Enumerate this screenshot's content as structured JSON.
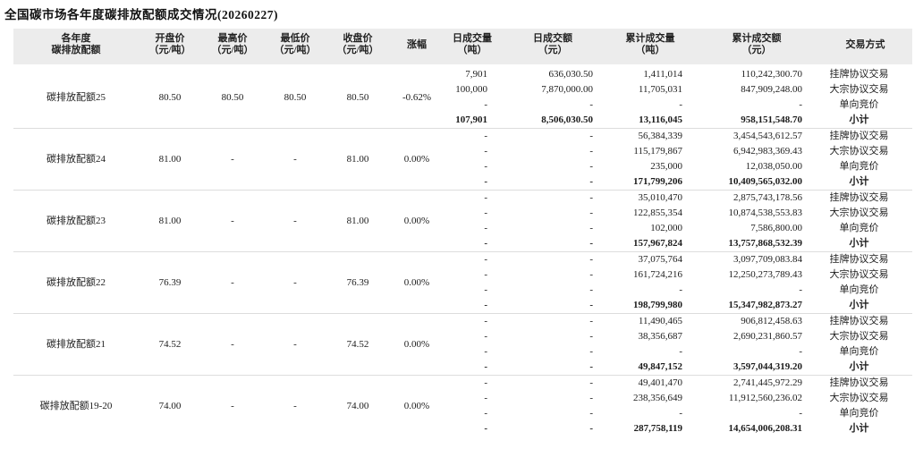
{
  "title": "全国碳市场各年度碳排放配额成交情况(20260227)",
  "table": {
    "subtotal_label": "小计",
    "headers": [
      [
        "各年度",
        "碳排放配额"
      ],
      [
        "开盘价",
        "（元/吨）"
      ],
      [
        "最高价",
        "（元/吨）"
      ],
      [
        "最低价",
        "（元/吨）"
      ],
      [
        "收盘价",
        "（元/吨）"
      ],
      [
        "涨幅",
        ""
      ],
      [
        "日成交量",
        "（吨）"
      ],
      [
        "日成交额",
        "（元）"
      ],
      [
        "累计成交量",
        "（吨）"
      ],
      [
        "累计成交额",
        "（元）"
      ],
      [
        "交易方式",
        ""
      ]
    ],
    "sections": [
      {
        "name": "碳排放配额25",
        "open": "80.50",
        "high": "80.50",
        "low": "80.50",
        "close": "80.50",
        "change": "-0.62%",
        "rows": [
          {
            "day_volume": "7,901",
            "day_amount": "636,030.50",
            "cum_volume": "1,411,014",
            "cum_amount": "110,242,300.70",
            "method": "挂牌协议交易"
          },
          {
            "day_volume": "100,000",
            "day_amount": "7,870,000.00",
            "cum_volume": "11,705,031",
            "cum_amount": "847,909,248.00",
            "method": "大宗协议交易"
          },
          {
            "day_volume": "-",
            "day_amount": "-",
            "cum_volume": "-",
            "cum_amount": "-",
            "method": "单向竞价"
          },
          {
            "day_volume": "107,901",
            "day_amount": "8,506,030.50",
            "cum_volume": "13,116,045",
            "cum_amount": "958,151,548.70",
            "method": "小计"
          }
        ]
      },
      {
        "name": "碳排放配额24",
        "open": "81.00",
        "high": "-",
        "low": "-",
        "close": "81.00",
        "change": "0.00%",
        "rows": [
          {
            "day_volume": "-",
            "day_amount": "-",
            "cum_volume": "56,384,339",
            "cum_amount": "3,454,543,612.57",
            "method": "挂牌协议交易"
          },
          {
            "day_volume": "-",
            "day_amount": "-",
            "cum_volume": "115,179,867",
            "cum_amount": "6,942,983,369.43",
            "method": "大宗协议交易"
          },
          {
            "day_volume": "-",
            "day_amount": "-",
            "cum_volume": "235,000",
            "cum_amount": "12,038,050.00",
            "method": "单向竞价"
          },
          {
            "day_volume": "-",
            "day_amount": "-",
            "cum_volume": "171,799,206",
            "cum_amount": "10,409,565,032.00",
            "method": "小计"
          }
        ]
      },
      {
        "name": "碳排放配额23",
        "open": "81.00",
        "high": "-",
        "low": "-",
        "close": "81.00",
        "change": "0.00%",
        "rows": [
          {
            "day_volume": "-",
            "day_amount": "-",
            "cum_volume": "35,010,470",
            "cum_amount": "2,875,743,178.56",
            "method": "挂牌协议交易"
          },
          {
            "day_volume": "-",
            "day_amount": "-",
            "cum_volume": "122,855,354",
            "cum_amount": "10,874,538,553.83",
            "method": "大宗协议交易"
          },
          {
            "day_volume": "-",
            "day_amount": "-",
            "cum_volume": "102,000",
            "cum_amount": "7,586,800.00",
            "method": "单向竞价"
          },
          {
            "day_volume": "-",
            "day_amount": "-",
            "cum_volume": "157,967,824",
            "cum_amount": "13,757,868,532.39",
            "method": "小计"
          }
        ]
      },
      {
        "name": "碳排放配额22",
        "open": "76.39",
        "high": "-",
        "low": "-",
        "close": "76.39",
        "change": "0.00%",
        "rows": [
          {
            "day_volume": "-",
            "day_amount": "-",
            "cum_volume": "37,075,764",
            "cum_amount": "3,097,709,083.84",
            "method": "挂牌协议交易"
          },
          {
            "day_volume": "-",
            "day_amount": "-",
            "cum_volume": "161,724,216",
            "cum_amount": "12,250,273,789.43",
            "method": "大宗协议交易"
          },
          {
            "day_volume": "-",
            "day_amount": "-",
            "cum_volume": "-",
            "cum_amount": "-",
            "method": "单向竞价"
          },
          {
            "day_volume": "-",
            "day_amount": "-",
            "cum_volume": "198,799,980",
            "cum_amount": "15,347,982,873.27",
            "method": "小计"
          }
        ]
      },
      {
        "name": "碳排放配额21",
        "open": "74.52",
        "high": "-",
        "low": "-",
        "close": "74.52",
        "change": "0.00%",
        "rows": [
          {
            "day_volume": "-",
            "day_amount": "-",
            "cum_volume": "11,490,465",
            "cum_amount": "906,812,458.63",
            "method": "挂牌协议交易"
          },
          {
            "day_volume": "-",
            "day_amount": "-",
            "cum_volume": "38,356,687",
            "cum_amount": "2,690,231,860.57",
            "method": "大宗协议交易"
          },
          {
            "day_volume": "-",
            "day_amount": "-",
            "cum_volume": "-",
            "cum_amount": "-",
            "method": "单向竞价"
          },
          {
            "day_volume": "-",
            "day_amount": "-",
            "cum_volume": "49,847,152",
            "cum_amount": "3,597,044,319.20",
            "method": "小计"
          }
        ]
      },
      {
        "name": "碳排放配额19-20",
        "open": "74.00",
        "high": "-",
        "low": "-",
        "close": "74.00",
        "change": "0.00%",
        "rows": [
          {
            "day_volume": "-",
            "day_amount": "-",
            "cum_volume": "49,401,470",
            "cum_amount": "2,741,445,972.29",
            "method": "挂牌协议交易"
          },
          {
            "day_volume": "-",
            "day_amount": "-",
            "cum_volume": "238,356,649",
            "cum_amount": "11,912,560,236.02",
            "method": "大宗协议交易"
          },
          {
            "day_volume": "-",
            "day_amount": "-",
            "cum_volume": "-",
            "cum_amount": "-",
            "method": "单向竞价"
          },
          {
            "day_volume": "-",
            "day_amount": "-",
            "cum_volume": "287,758,119",
            "cum_amount": "14,654,006,208.31",
            "method": "小计"
          }
        ]
      }
    ]
  }
}
